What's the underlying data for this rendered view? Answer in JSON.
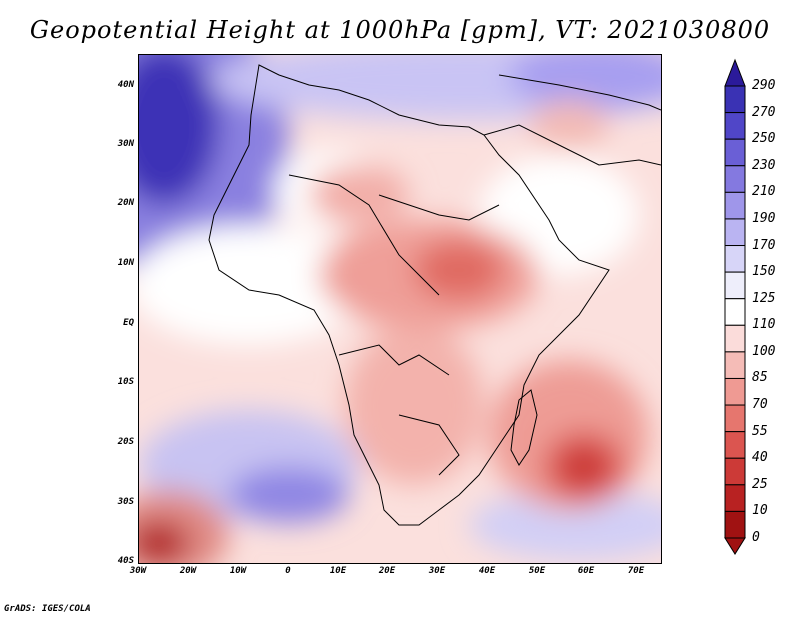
{
  "title": "Geopotential Height at 1000hPa [gpm], VT: 2021030800",
  "footer": "GrADS: IGES/COLA",
  "axes": {
    "lat_labels": [
      "40N",
      "30N",
      "20N",
      "10N",
      "EQ",
      "10S",
      "20S",
      "30S",
      "40S"
    ],
    "lon_labels": [
      "30W",
      "20W",
      "10W",
      "0",
      "10E",
      "20E",
      "30E",
      "40E",
      "50E",
      "60E",
      "70E"
    ]
  },
  "colorbar": {
    "levels": [
      "290",
      "270",
      "250",
      "230",
      "210",
      "190",
      "170",
      "150",
      "125",
      "110",
      "100",
      "85",
      "70",
      "55",
      "40",
      "25",
      "10",
      "0"
    ],
    "colors": [
      "#2b1a9a",
      "#3a32b4",
      "#5046c8",
      "#6a5fd6",
      "#8479e0",
      "#9f96ea",
      "#bab4f2",
      "#d7d5f8",
      "#eeeefb",
      "#ffffff",
      "#fbdcda",
      "#f5bcb7",
      "#ef9a93",
      "#e6766e",
      "#db5550",
      "#cc3a37",
      "#b82222",
      "#a01212"
    ]
  },
  "legend_colors": {
    "high_anomaly": "#3a2fa8",
    "low_anomaly": "#b81e1e",
    "neutral": "#ffffff"
  }
}
